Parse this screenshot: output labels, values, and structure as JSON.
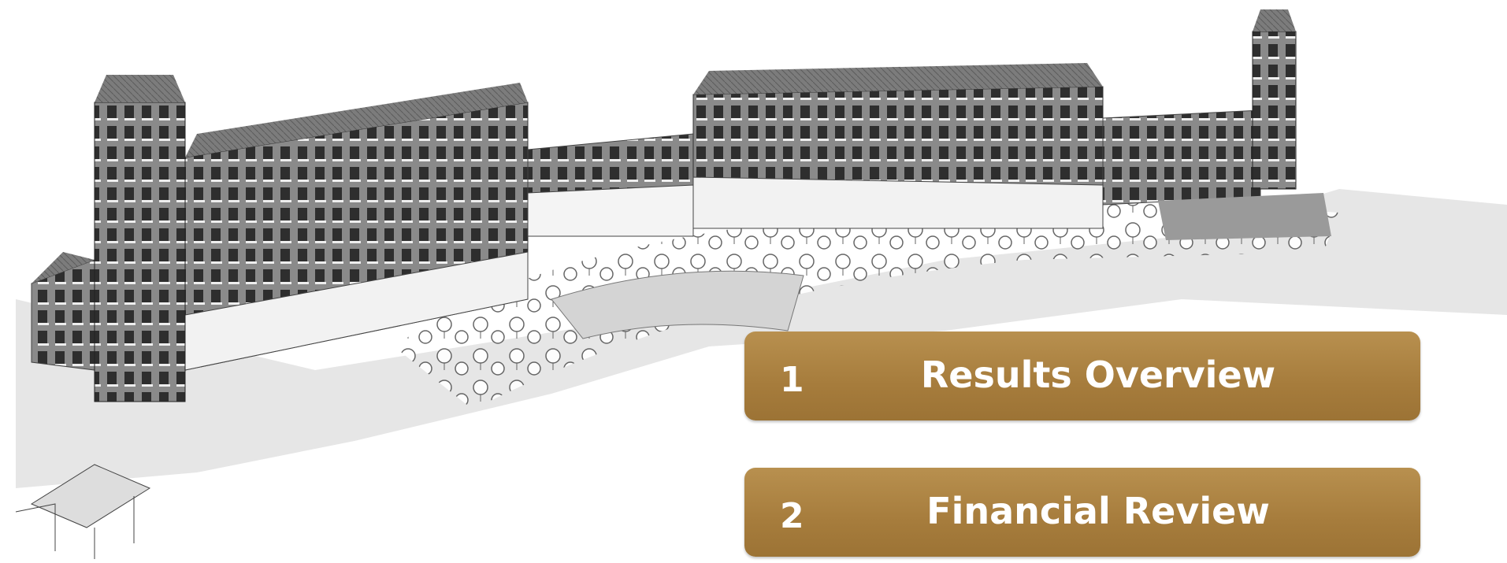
{
  "menu": {
    "items": [
      {
        "number": "1",
        "label": "Results Overview"
      },
      {
        "number": "2",
        "label": "Financial Review"
      }
    ]
  }
}
